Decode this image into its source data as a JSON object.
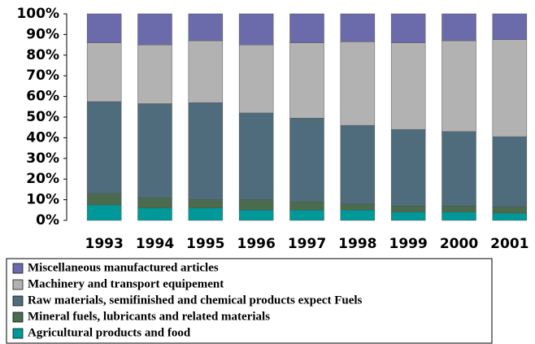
{
  "chart_data": {
    "type": "stacked_bar",
    "categories": [
      "1993",
      "1994",
      "1995",
      "1996",
      "1997",
      "1998",
      "1999",
      "2000",
      "2001"
    ],
    "series": [
      {
        "name": "Agricultural products and food",
        "color": "#009999",
        "values": [
          7.5,
          6,
          6,
          5,
          5,
          5,
          4,
          4,
          3.5
        ]
      },
      {
        "name": "Mineral fuels, lubricants and related materials",
        "color": "#4a6b4e",
        "values": [
          5.5,
          5,
          4,
          5,
          4,
          3,
          3,
          3,
          3
        ]
      },
      {
        "name": "Raw materials, semifinished and chemical products expect Fuels",
        "color": "#4e6c7b",
        "values": [
          44.5,
          45.5,
          47,
          42,
          40.5,
          38,
          37,
          36,
          34
        ]
      },
      {
        "name": "Machinery and transport equipement",
        "color": "#b2b2b2",
        "values": [
          28.5,
          28.5,
          30,
          33,
          36.5,
          40.5,
          42,
          44,
          47
        ]
      },
      {
        "name": "Miscellaneous manufactured articles",
        "color": "#6b6bab",
        "values": [
          14,
          15,
          13,
          15,
          14,
          13.5,
          14,
          13,
          12.5
        ]
      }
    ],
    "ylim": [
      0,
      100
    ],
    "yticks": [
      {
        "value": 0,
        "label": "0%"
      },
      {
        "value": 10,
        "label": "10%"
      },
      {
        "value": 20,
        "label": "20%"
      },
      {
        "value": 30,
        "label": "30%"
      },
      {
        "value": 40,
        "label": "40%"
      },
      {
        "value": 50,
        "label": "50%"
      },
      {
        "value": 60,
        "label": "60%"
      },
      {
        "value": 70,
        "label": "70%"
      },
      {
        "value": 80,
        "label": "80%"
      },
      {
        "value": 90,
        "label": "90%"
      },
      {
        "value": 100,
        "label": "100%"
      }
    ],
    "legend": "bottom"
  }
}
